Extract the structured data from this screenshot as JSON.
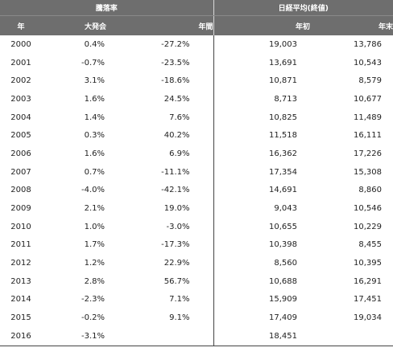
{
  "header": {
    "group_left": "騰落率",
    "group_right": "日経平均(終値)",
    "col_year": "年",
    "col_conference": "大発会",
    "col_annual": "年間",
    "col_open": "年初",
    "col_close": "年末"
  },
  "rows": [
    {
      "year": "2000",
      "conference": "0.4%",
      "annual": "-27.2%",
      "open": "19,003",
      "close": "13,786"
    },
    {
      "year": "2001",
      "conference": "-0.7%",
      "annual": "-23.5%",
      "open": "13,691",
      "close": "10,543"
    },
    {
      "year": "2002",
      "conference": "3.1%",
      "annual": "-18.6%",
      "open": "10,871",
      "close": "8,579"
    },
    {
      "year": "2003",
      "conference": "1.6%",
      "annual": "24.5%",
      "open": "8,713",
      "close": "10,677"
    },
    {
      "year": "2004",
      "conference": "1.4%",
      "annual": "7.6%",
      "open": "10,825",
      "close": "11,489"
    },
    {
      "year": "2005",
      "conference": "0.3%",
      "annual": "40.2%",
      "open": "11,518",
      "close": "16,111"
    },
    {
      "year": "2006",
      "conference": "1.6%",
      "annual": "6.9%",
      "open": "16,362",
      "close": "17,226"
    },
    {
      "year": "2007",
      "conference": "0.7%",
      "annual": "-11.1%",
      "open": "17,354",
      "close": "15,308"
    },
    {
      "year": "2008",
      "conference": "-4.0%",
      "annual": "-42.1%",
      "open": "14,691",
      "close": "8,860"
    },
    {
      "year": "2009",
      "conference": "2.1%",
      "annual": "19.0%",
      "open": "9,043",
      "close": "10,546"
    },
    {
      "year": "2010",
      "conference": "1.0%",
      "annual": "-3.0%",
      "open": "10,655",
      "close": "10,229"
    },
    {
      "year": "2011",
      "conference": "1.7%",
      "annual": "-17.3%",
      "open": "10,398",
      "close": "8,455"
    },
    {
      "year": "2012",
      "conference": "1.2%",
      "annual": "22.9%",
      "open": "8,560",
      "close": "10,395"
    },
    {
      "year": "2013",
      "conference": "2.8%",
      "annual": "56.7%",
      "open": "10,688",
      "close": "16,291"
    },
    {
      "year": "2014",
      "conference": "-2.3%",
      "annual": "7.1%",
      "open": "15,909",
      "close": "17,451"
    },
    {
      "year": "2015",
      "conference": "-0.2%",
      "annual": "9.1%",
      "open": "17,409",
      "close": "19,034"
    },
    {
      "year": "2016",
      "conference": "-3.1%",
      "annual": "",
      "open": "18,451",
      "close": ""
    }
  ]
}
